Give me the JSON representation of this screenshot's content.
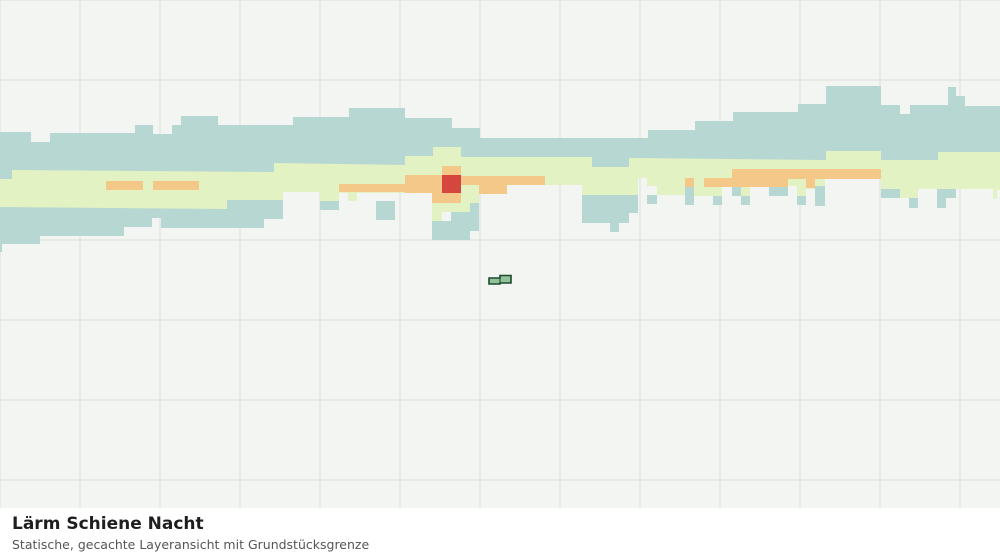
{
  "caption": {
    "title": "Lärm Schiene Nacht",
    "subtitle": "Statische, gecachte Layeransicht mit Grundstücksgrenze"
  },
  "map": {
    "layer": "Lärm Schiene Nacht",
    "noise_class_colors": {
      "class_1": "#b7d7d3",
      "class_2": "#e3f2c2",
      "class_3": "#f4c888",
      "class_4": "#d4463e"
    },
    "parcel_colors": {
      "fill": "#8fc49a",
      "stroke": "#1e4a2c"
    },
    "background_color": "#f3f5f2",
    "grid_color": "#dcdedb"
  }
}
